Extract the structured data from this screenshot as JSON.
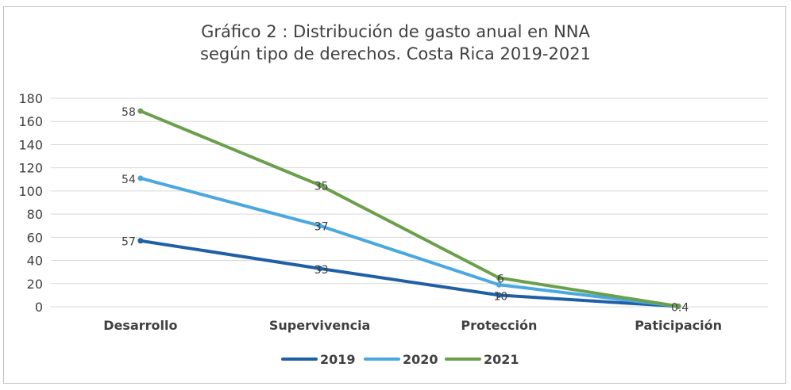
{
  "chart_data": {
    "type": "line",
    "title_line1": "Gráfico 2 : Distribución de gasto anual en NNA",
    "title_line2": "según tipo de derechos. Costa Rica 2019-2021",
    "categories": [
      "Desarrollo",
      "Supervivencia",
      "Protección",
      "Paticipación"
    ],
    "ylim": [
      0,
      180
    ],
    "yticks": [
      0,
      20,
      40,
      60,
      80,
      100,
      120,
      140,
      160,
      180
    ],
    "grid": true,
    "legend_position": "bottom",
    "series": [
      {
        "name": "2019",
        "color": "#1f5fa6",
        "values": [
          57,
          33,
          10,
          0.4
        ],
        "labels": [
          "57",
          "33",
          "10",
          ""
        ]
      },
      {
        "name": "2020",
        "color": "#4aa8e0",
        "values": [
          111,
          70,
          19,
          0.4
        ],
        "labels": [
          "54",
          "37",
          "",
          ""
        ]
      },
      {
        "name": "2021",
        "color": "#6a9f4b",
        "values": [
          169,
          105,
          25,
          0.4
        ],
        "labels": [
          "58",
          "35",
          "6",
          "0.4"
        ]
      }
    ]
  }
}
